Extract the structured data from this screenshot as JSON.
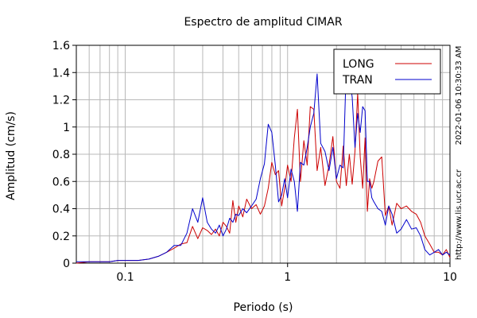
{
  "chart_data": {
    "type": "line",
    "title": "Espectro de amplitud CIMAR",
    "xlabel": "Periodo (s)",
    "ylabel": "Amplitud (cm/s)",
    "x_scale": "log",
    "xlim": [
      0.05,
      10
    ],
    "ylim": [
      0,
      1.6
    ],
    "xticks": [
      0.1,
      1,
      10
    ],
    "xtick_labels": [
      "0.1",
      "1",
      "10"
    ],
    "yticks": [
      0,
      0.2,
      0.4,
      0.6,
      0.8,
      1.0,
      1.2,
      1.4,
      1.6
    ],
    "ytick_labels": [
      "0",
      "0.2",
      "0.4",
      "0.6",
      "0.8",
      "1",
      "1.2",
      "1.4",
      "1.6"
    ],
    "grid": true,
    "legend_position": "top-right",
    "side_texts": [
      "2022-01-06 10:30:33 AM",
      "http://www.lis.ucr.ac.cr"
    ],
    "series": [
      {
        "name": "LONG",
        "color": "#cc0000",
        "x": [
          0.05,
          0.06,
          0.07,
          0.08,
          0.09,
          0.1,
          0.12,
          0.14,
          0.16,
          0.18,
          0.2,
          0.22,
          0.24,
          0.26,
          0.28,
          0.3,
          0.32,
          0.34,
          0.36,
          0.38,
          0.4,
          0.42,
          0.44,
          0.46,
          0.48,
          0.5,
          0.53,
          0.56,
          0.6,
          0.64,
          0.68,
          0.72,
          0.76,
          0.8,
          0.84,
          0.88,
          0.92,
          0.96,
          1.0,
          1.05,
          1.1,
          1.15,
          1.2,
          1.26,
          1.32,
          1.38,
          1.45,
          1.52,
          1.6,
          1.7,
          1.8,
          1.9,
          2.0,
          2.1,
          2.2,
          2.3,
          2.4,
          2.5,
          2.6,
          2.7,
          2.8,
          2.9,
          3.0,
          3.1,
          3.2,
          3.3,
          3.4,
          3.6,
          3.8,
          4.0,
          4.2,
          4.4,
          4.7,
          5.0,
          5.4,
          5.8,
          6.2,
          6.6,
          7.0,
          7.5,
          8.0,
          8.5,
          9.0,
          9.5,
          10.0
        ],
        "y": [
          0.0,
          0.01,
          0.01,
          0.01,
          0.02,
          0.02,
          0.02,
          0.03,
          0.05,
          0.08,
          0.11,
          0.14,
          0.15,
          0.27,
          0.18,
          0.26,
          0.24,
          0.21,
          0.25,
          0.2,
          0.3,
          0.27,
          0.22,
          0.46,
          0.3,
          0.42,
          0.34,
          0.47,
          0.4,
          0.43,
          0.36,
          0.42,
          0.55,
          0.74,
          0.65,
          0.68,
          0.42,
          0.55,
          0.72,
          0.6,
          0.92,
          1.13,
          0.6,
          0.9,
          0.72,
          1.15,
          1.13,
          0.68,
          0.85,
          0.57,
          0.72,
          0.93,
          0.6,
          0.55,
          0.86,
          0.57,
          0.8,
          0.58,
          0.82,
          1.25,
          0.78,
          0.55,
          0.92,
          0.38,
          0.62,
          0.55,
          0.6,
          0.75,
          0.78,
          0.35,
          0.42,
          0.28,
          0.44,
          0.4,
          0.42,
          0.38,
          0.36,
          0.3,
          0.2,
          0.14,
          0.08,
          0.08,
          0.06,
          0.1,
          0.04
        ]
      },
      {
        "name": "TRAN",
        "color": "#0000cc",
        "x": [
          0.05,
          0.06,
          0.07,
          0.08,
          0.09,
          0.1,
          0.12,
          0.14,
          0.16,
          0.18,
          0.2,
          0.22,
          0.24,
          0.26,
          0.28,
          0.3,
          0.32,
          0.34,
          0.36,
          0.38,
          0.4,
          0.42,
          0.44,
          0.46,
          0.48,
          0.5,
          0.53,
          0.56,
          0.6,
          0.64,
          0.68,
          0.72,
          0.76,
          0.8,
          0.84,
          0.88,
          0.92,
          0.96,
          1.0,
          1.05,
          1.1,
          1.15,
          1.2,
          1.26,
          1.32,
          1.38,
          1.45,
          1.52,
          1.6,
          1.7,
          1.8,
          1.9,
          2.0,
          2.1,
          2.2,
          2.3,
          2.4,
          2.5,
          2.6,
          2.7,
          2.8,
          2.9,
          3.0,
          3.1,
          3.2,
          3.3,
          3.4,
          3.6,
          3.8,
          4.0,
          4.2,
          4.4,
          4.7,
          5.0,
          5.4,
          5.8,
          6.2,
          6.6,
          7.0,
          7.5,
          8.0,
          8.5,
          9.0,
          9.5,
          10.0
        ],
        "y": [
          0.01,
          0.01,
          0.01,
          0.01,
          0.02,
          0.02,
          0.02,
          0.03,
          0.05,
          0.08,
          0.13,
          0.13,
          0.22,
          0.4,
          0.3,
          0.48,
          0.3,
          0.25,
          0.22,
          0.28,
          0.2,
          0.25,
          0.33,
          0.3,
          0.36,
          0.35,
          0.4,
          0.37,
          0.42,
          0.47,
          0.62,
          0.73,
          1.02,
          0.96,
          0.72,
          0.45,
          0.5,
          0.62,
          0.48,
          0.69,
          0.6,
          0.38,
          0.74,
          0.72,
          0.85,
          1.0,
          1.1,
          1.39,
          0.88,
          0.82,
          0.68,
          0.85,
          0.62,
          0.72,
          0.7,
          1.45,
          1.38,
          1.22,
          0.85,
          1.1,
          0.96,
          1.15,
          1.12,
          0.6,
          0.6,
          0.48,
          0.45,
          0.4,
          0.38,
          0.28,
          0.42,
          0.36,
          0.22,
          0.25,
          0.32,
          0.25,
          0.26,
          0.2,
          0.1,
          0.06,
          0.08,
          0.1,
          0.06,
          0.08,
          0.06
        ]
      }
    ]
  }
}
